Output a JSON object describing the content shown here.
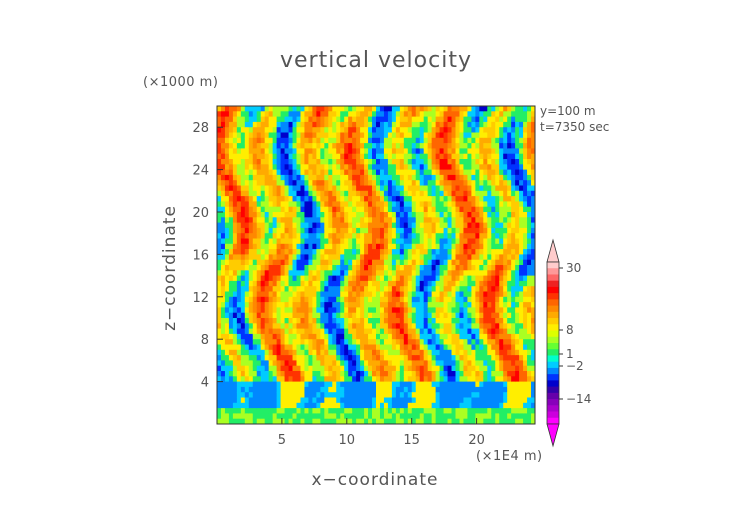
{
  "chart_data": {
    "type": "heatmap",
    "title": "vertical velocity",
    "xlabel": "x−coordinate",
    "ylabel": "z−coordinate",
    "x_unit": "(×1E4 m)",
    "y_unit": "(×1000 m)",
    "annotations": [
      "y=100  m",
      "t=7350 sec"
    ],
    "x_ticks": [
      5,
      10,
      15,
      20
    ],
    "y_ticks": [
      4,
      8,
      12,
      16,
      20,
      24,
      28
    ],
    "xlim": [
      0,
      24.5
    ],
    "ylim": [
      0,
      30
    ],
    "colorbar": {
      "tick_labels": [
        "30",
        "8",
        "1",
        "−2",
        "−14"
      ],
      "tick_values": [
        30,
        8,
        1,
        -2,
        -14
      ],
      "colors": [
        "#ff00ff",
        "#cc00dd",
        "#aa00cc",
        "#8800bb",
        "#6600aa",
        "#3300aa",
        "#0000cc",
        "#0033ff",
        "#0088ff",
        "#00ccff",
        "#00ffcc",
        "#22ee66",
        "#66ff33",
        "#aaff22",
        "#ddff00",
        "#ffee00",
        "#ffcc00",
        "#ffaa00",
        "#ff8800",
        "#ff6600",
        "#ff3300",
        "#ff0000",
        "#ee2222",
        "#ff6666",
        "#ff9999",
        "#ffcccc"
      ]
    },
    "grid": false
  }
}
